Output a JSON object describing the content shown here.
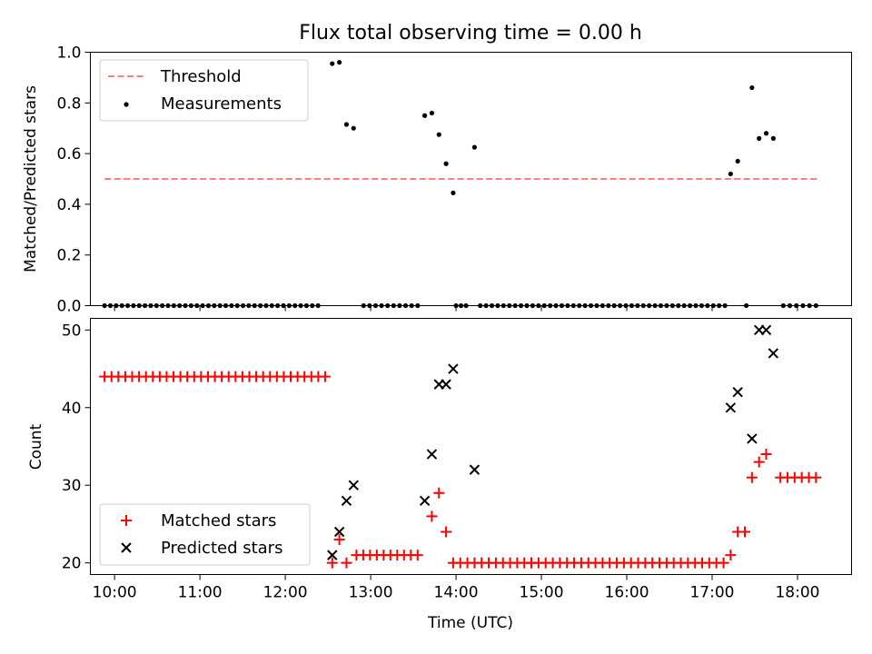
{
  "figure_title": "Flux total observing time = 0.00 h",
  "chart_data": [
    {
      "type": "scatter",
      "panel": "top",
      "ylabel": "Matched/Predicted stars",
      "xlabel": "",
      "xlim": [
        "09:43",
        "18:38"
      ],
      "ylim": [
        0,
        1.0
      ],
      "yticks": [
        0.0,
        0.2,
        0.4,
        0.6,
        0.8,
        1.0
      ],
      "ytick_labels": [
        "0.0",
        "0.2",
        "0.4",
        "0.6",
        "0.8",
        "1.0"
      ],
      "xticks": [
        "10:00",
        "11:00",
        "12:00",
        "13:00",
        "14:00",
        "15:00",
        "16:00",
        "17:00",
        "18:00"
      ],
      "legend": {
        "placement": "upper-left",
        "entries": [
          "Threshold",
          "Measurements"
        ]
      },
      "series": [
        {
          "name": "Threshold",
          "style": "dashed-line",
          "color": "#ff7f7f",
          "x": [
            "09:53",
            "18:15"
          ],
          "y": [
            0.5,
            0.5
          ]
        },
        {
          "name": "Measurements",
          "style": "dot",
          "color": "#000000",
          "zero_runs": [
            {
              "start": "09:53",
              "end": "12:23",
              "count": 38
            },
            {
              "start": "12:55",
              "end": "13:33",
              "count": 10
            },
            {
              "start": "14:00",
              "end": "14:07",
              "count": 3
            },
            {
              "start": "14:17",
              "end": "17:09",
              "count": 43
            },
            {
              "start": "17:24",
              "end": "17:24",
              "count": 1
            },
            {
              "start": "17:50",
              "end": "18:13",
              "count": 6
            }
          ],
          "points": [
            {
              "x": "12:33",
              "y": 0.955
            },
            {
              "x": "12:38",
              "y": 0.96
            },
            {
              "x": "12:43",
              "y": 0.715
            },
            {
              "x": "12:48",
              "y": 0.7
            },
            {
              "x": "13:38",
              "y": 0.75
            },
            {
              "x": "13:43",
              "y": 0.76
            },
            {
              "x": "13:48",
              "y": 0.675
            },
            {
              "x": "13:53",
              "y": 0.56
            },
            {
              "x": "13:58",
              "y": 0.445
            },
            {
              "x": "14:13",
              "y": 0.625
            },
            {
              "x": "17:13",
              "y": 0.52
            },
            {
              "x": "17:18",
              "y": 0.57
            },
            {
              "x": "17:28",
              "y": 0.86
            },
            {
              "x": "17:33",
              "y": 0.66
            },
            {
              "x": "17:38",
              "y": 0.68
            },
            {
              "x": "17:43",
              "y": 0.66
            }
          ]
        }
      ]
    },
    {
      "type": "scatter",
      "panel": "bottom",
      "ylabel": "Count",
      "xlabel": "Time (UTC)",
      "xlim": [
        "09:43",
        "18:38"
      ],
      "ylim": [
        18.5,
        51.5
      ],
      "yticks": [
        20,
        30,
        40,
        50
      ],
      "ytick_labels": [
        "20",
        "30",
        "40",
        "50"
      ],
      "xticks": [
        "10:00",
        "11:00",
        "12:00",
        "13:00",
        "14:00",
        "15:00",
        "16:00",
        "17:00",
        "18:00"
      ],
      "xtick_labels": [
        "10:00",
        "11:00",
        "12:00",
        "13:00",
        "14:00",
        "15:00",
        "16:00",
        "17:00",
        "18:00"
      ],
      "legend": {
        "placement": "lower-left",
        "entries": [
          "Matched stars",
          "Predicted stars"
        ]
      },
      "series": [
        {
          "name": "Matched stars",
          "marker": "plus",
          "color": "#ff0000",
          "runs": [
            {
              "start": "09:53",
              "end": "12:28",
              "count": 33,
              "y": 44
            },
            {
              "start": "12:50",
              "end": "13:33",
              "count": 10,
              "y": 21
            },
            {
              "start": "13:58",
              "end": "14:53",
              "count": 12,
              "y": 20
            },
            {
              "start": "14:53",
              "end": "17:08",
              "count": 28,
              "y": 20
            },
            {
              "start": "17:48",
              "end": "18:13",
              "count": 6,
              "y": 31
            }
          ],
          "points": [
            {
              "x": "12:33",
              "y": 20
            },
            {
              "x": "12:38",
              "y": 23
            },
            {
              "x": "12:43",
              "y": 20
            },
            {
              "x": "13:43",
              "y": 26
            },
            {
              "x": "13:48",
              "y": 29
            },
            {
              "x": "13:53",
              "y": 24
            },
            {
              "x": "17:13",
              "y": 21
            },
            {
              "x": "17:18",
              "y": 24
            },
            {
              "x": "17:23",
              "y": 24
            },
            {
              "x": "17:28",
              "y": 31
            },
            {
              "x": "17:33",
              "y": 33
            },
            {
              "x": "17:38",
              "y": 34
            }
          ]
        },
        {
          "name": "Predicted stars",
          "marker": "x",
          "color": "#000000",
          "points": [
            {
              "x": "12:33",
              "y": 21
            },
            {
              "x": "12:38",
              "y": 24
            },
            {
              "x": "12:43",
              "y": 28
            },
            {
              "x": "12:48",
              "y": 30
            },
            {
              "x": "13:38",
              "y": 28
            },
            {
              "x": "13:43",
              "y": 34
            },
            {
              "x": "13:48",
              "y": 43
            },
            {
              "x": "13:53",
              "y": 43
            },
            {
              "x": "13:58",
              "y": 45
            },
            {
              "x": "14:13",
              "y": 32
            },
            {
              "x": "17:13",
              "y": 40
            },
            {
              "x": "17:18",
              "y": 42
            },
            {
              "x": "17:28",
              "y": 36
            },
            {
              "x": "17:33",
              "y": 50
            },
            {
              "x": "17:38",
              "y": 50
            },
            {
              "x": "17:43",
              "y": 47
            }
          ]
        }
      ]
    }
  ]
}
